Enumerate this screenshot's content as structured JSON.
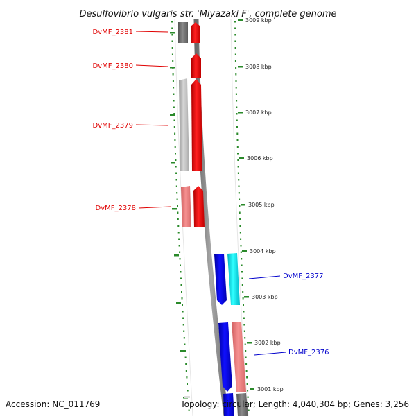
{
  "title": "Desulfovibrio vulgaris str. 'Miyazaki F', complete genome",
  "footer": {
    "accession": "Accession: NC_011769",
    "topology": "Topology: circular; Length: 4,040,304 bp; Genes: 3,256"
  },
  "colors": {
    "forward_strand": "#ff0000",
    "reverse_strand": "#0000ff",
    "cyan_gene": "#00e5ee",
    "gray_gene": "#808080",
    "light_gray_gene": "#c8c8c8",
    "pink_gene": "#f08080",
    "tick": "#2a8a2a",
    "backbone": "#8c8c8c"
  },
  "scale": [
    {
      "label": "3009 kbp",
      "kbp": 3009
    },
    {
      "label": "3008 kbp",
      "kbp": 3008
    },
    {
      "label": "3007 kbp",
      "kbp": 3007
    },
    {
      "label": "3006 kbp",
      "kbp": 3006
    },
    {
      "label": "3005 kbp",
      "kbp": 3005
    },
    {
      "label": "3004 kbp",
      "kbp": 3004
    },
    {
      "label": "3003 kbp",
      "kbp": 3003
    },
    {
      "label": "3002 kbp",
      "kbp": 3002
    },
    {
      "label": "3001 kbp",
      "kbp": 3001
    }
  ],
  "genes": [
    {
      "name": "DvMF_2381",
      "strand": "forward"
    },
    {
      "name": "DvMF_2380",
      "strand": "forward"
    },
    {
      "name": "DvMF_2379",
      "strand": "forward"
    },
    {
      "name": "DvMF_2378",
      "strand": "forward"
    },
    {
      "name": "DvMF_2377",
      "strand": "reverse"
    },
    {
      "name": "DvMF_2376",
      "strand": "reverse"
    }
  ]
}
